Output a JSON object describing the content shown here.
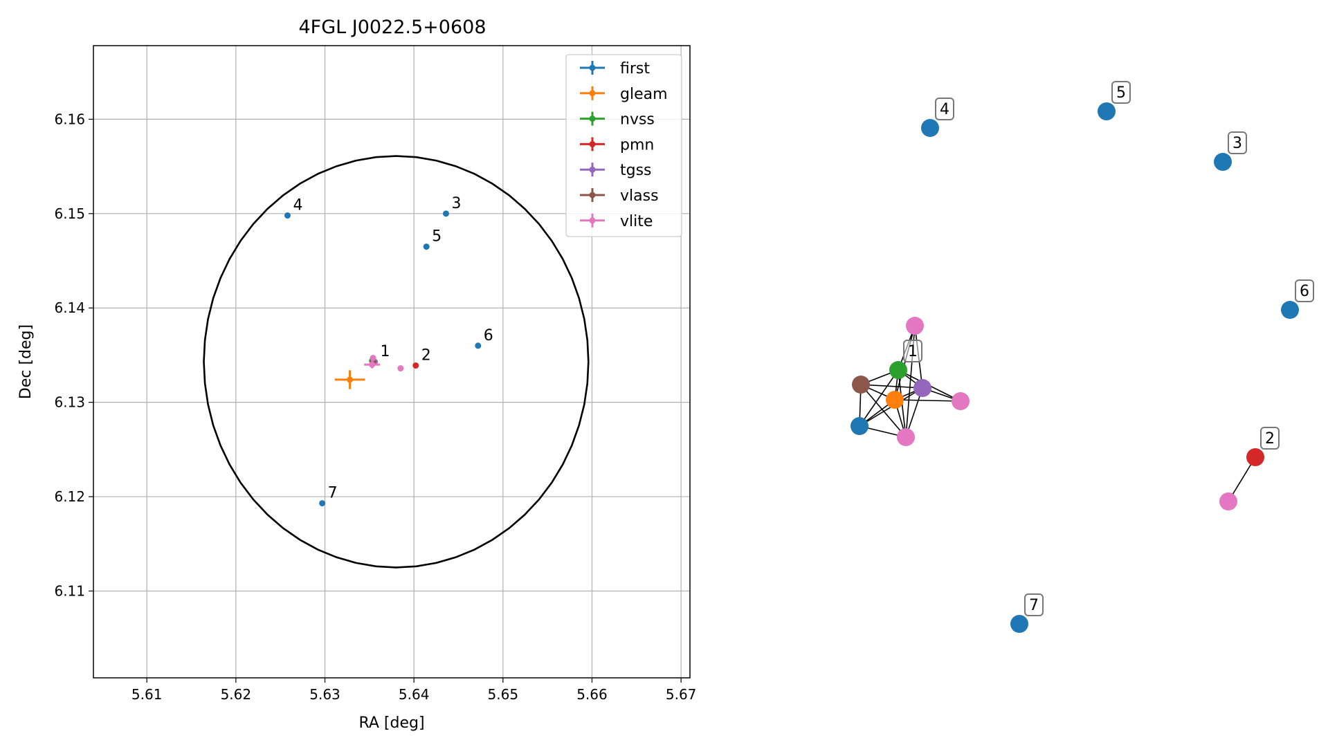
{
  "chart_data": [
    {
      "type": "scatter",
      "title": "4FGL J0022.5+0608",
      "xlabel": "RA [deg]",
      "ylabel": "Dec [deg]",
      "xlim": [
        5.604,
        5.671
      ],
      "ylim": [
        6.1008,
        6.1678
      ],
      "grid": true,
      "legend_position": "top-right",
      "xticks": [
        "5.61",
        "5.62",
        "5.63",
        "5.64",
        "5.65",
        "5.66",
        "5.67"
      ],
      "yticks": [
        "6.11",
        "6.12",
        "6.13",
        "6.14",
        "6.15",
        "6.16"
      ],
      "colors": {
        "first": "#1f77b4",
        "gleam": "#ff7f0e",
        "nvss": "#2ca02c",
        "pmn": "#d62728",
        "tgss": "#9467bd",
        "vlass": "#8c564b",
        "vlite": "#e377c2"
      },
      "series": [
        {
          "name": "first",
          "points": [
            {
              "x": 5.6258,
              "y": 6.1498,
              "label": "4"
            },
            {
              "x": 5.6436,
              "y": 6.15,
              "label": "3"
            },
            {
              "x": 5.6414,
              "y": 6.1465,
              "label": "5"
            },
            {
              "x": 5.6472,
              "y": 6.136,
              "label": "6"
            },
            {
              "x": 5.6297,
              "y": 6.1193,
              "label": "7"
            }
          ]
        },
        {
          "name": "gleam",
          "points": [
            {
              "x": 5.6328,
              "y": 6.1324,
              "xerr": 0.0017,
              "yerr": 0.001
            }
          ]
        },
        {
          "name": "nvss",
          "points": [
            {
              "x": 5.6353,
              "y": 6.1344
            }
          ]
        },
        {
          "name": "pmn",
          "points": [
            {
              "x": 5.6402,
              "y": 6.1339,
              "label": "2"
            }
          ]
        },
        {
          "name": "tgss",
          "points": [
            {
              "x": 5.6356,
              "y": 6.1343,
              "label": "1"
            }
          ]
        },
        {
          "name": "vlass",
          "points": [
            {
              "x": 5.6354,
              "y": 6.1343
            }
          ]
        },
        {
          "name": "vlite",
          "points": [
            {
              "x": 5.6354,
              "y": 6.1347
            },
            {
              "x": 5.6353,
              "y": 6.134,
              "xerr": 0.0009,
              "yerr": 0.0004
            },
            {
              "x": 5.6385,
              "y": 6.1336
            }
          ]
        }
      ],
      "circle": {
        "center_x": 5.638,
        "center_y": 6.1343,
        "radius_x": 0.0216,
        "radius_y": 0.0218
      }
    },
    {
      "type": "network",
      "nodes": [
        {
          "id": "n1",
          "source": "vlite",
          "label": ""
        },
        {
          "id": "n2",
          "source": "nvss",
          "label": "1"
        },
        {
          "id": "n3",
          "source": "vlass",
          "label": ""
        },
        {
          "id": "n4",
          "source": "gleam",
          "label": ""
        },
        {
          "id": "n5",
          "source": "tgss",
          "label": ""
        },
        {
          "id": "n6",
          "source": "vlite",
          "label": ""
        },
        {
          "id": "n7",
          "source": "first",
          "label": ""
        },
        {
          "id": "n8",
          "source": "vlite",
          "label": ""
        },
        {
          "id": "f4",
          "source": "first",
          "label": "4"
        },
        {
          "id": "f5",
          "source": "first",
          "label": "5"
        },
        {
          "id": "f3",
          "source": "first",
          "label": "3"
        },
        {
          "id": "f6",
          "source": "first",
          "label": "6"
        },
        {
          "id": "p2",
          "source": "pmn",
          "label": "2"
        },
        {
          "id": "v2",
          "source": "vlite",
          "label": ""
        },
        {
          "id": "f7",
          "source": "first",
          "label": "7"
        }
      ],
      "edges": [
        [
          "n1",
          "n2"
        ],
        [
          "n1",
          "n4"
        ],
        [
          "n1",
          "n5"
        ],
        [
          "n1",
          "n8"
        ],
        [
          "n2",
          "n3"
        ],
        [
          "n2",
          "n4"
        ],
        [
          "n2",
          "n5"
        ],
        [
          "n2",
          "n6"
        ],
        [
          "n2",
          "n7"
        ],
        [
          "n2",
          "n8"
        ],
        [
          "n3",
          "n4"
        ],
        [
          "n3",
          "n5"
        ],
        [
          "n3",
          "n7"
        ],
        [
          "n3",
          "n8"
        ],
        [
          "n4",
          "n5"
        ],
        [
          "n4",
          "n6"
        ],
        [
          "n4",
          "n7"
        ],
        [
          "n4",
          "n8"
        ],
        [
          "n5",
          "n6"
        ],
        [
          "n5",
          "n7"
        ],
        [
          "n5",
          "n8"
        ],
        [
          "n7",
          "n8"
        ],
        [
          "p2",
          "v2"
        ]
      ]
    }
  ]
}
